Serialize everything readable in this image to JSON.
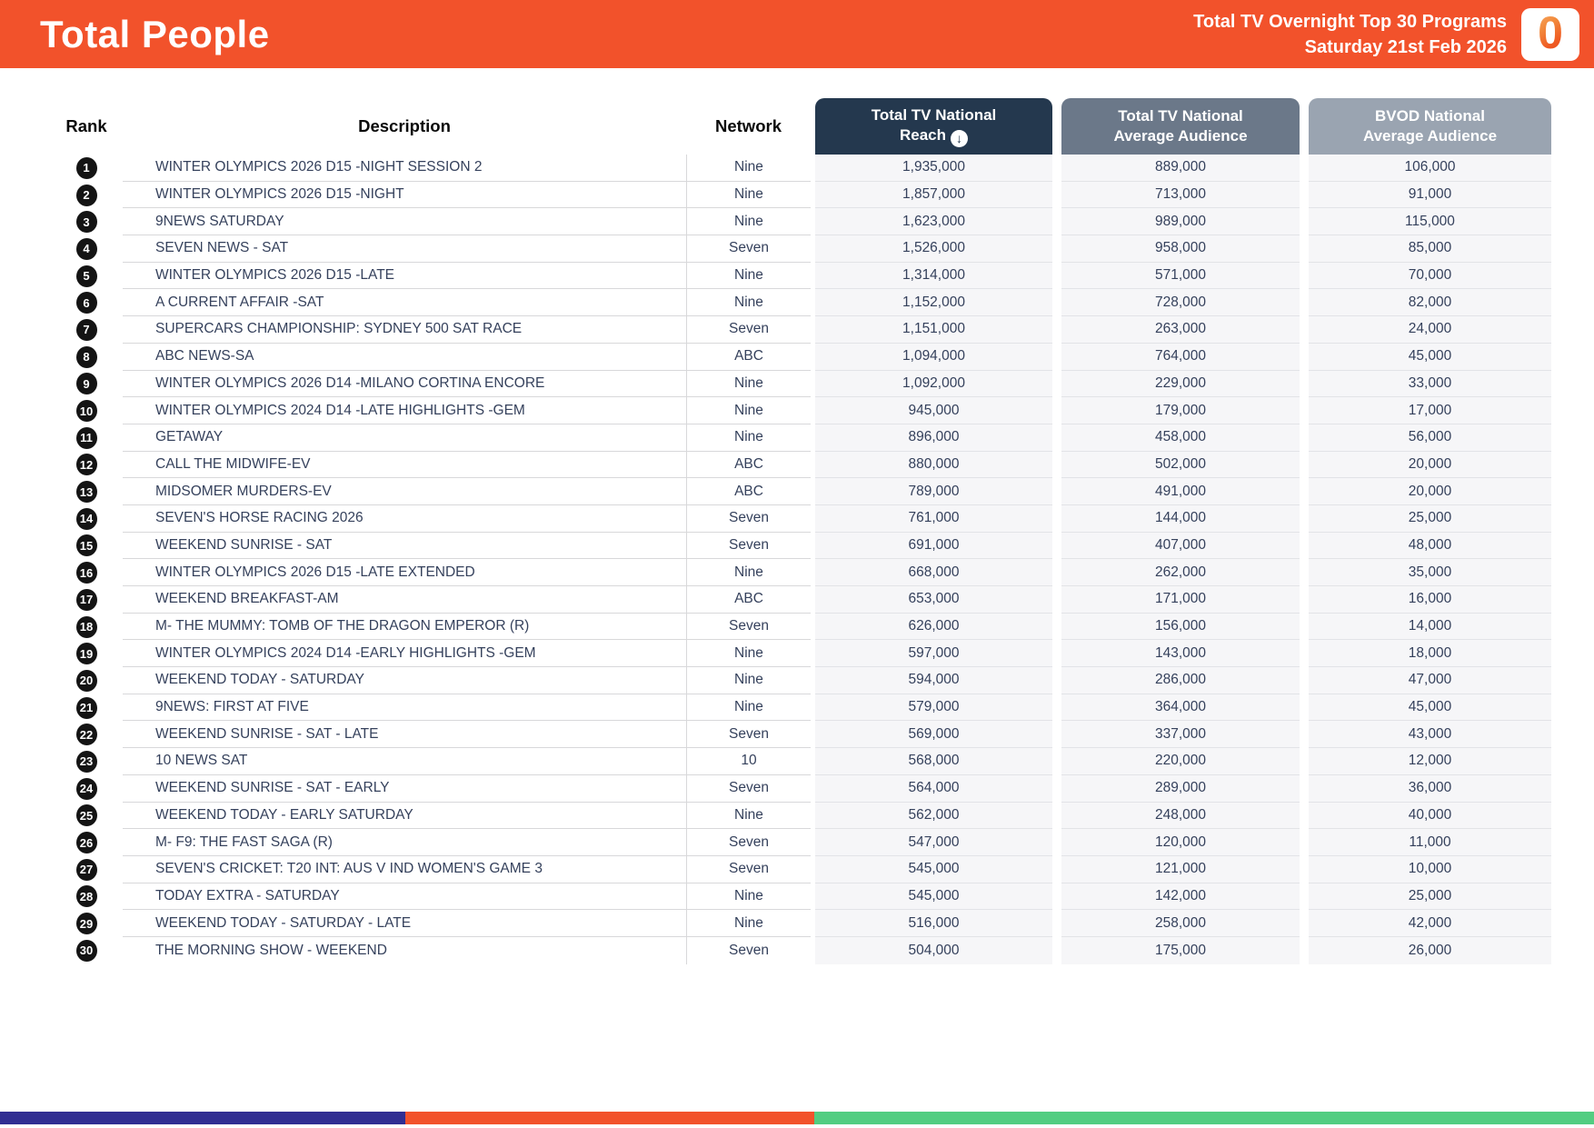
{
  "header": {
    "title": "Total People",
    "subtitle_line1": "Total TV Overnight Top 30 Programs",
    "subtitle_line2": "Saturday 21st Feb 2026",
    "logo_glyph": "0",
    "bg_color": "#f2522b"
  },
  "table": {
    "columns": {
      "rank": "Rank",
      "description": "Description",
      "network": "Network",
      "reach_line1": "Total TV National",
      "reach_line2": "Reach",
      "avg_line1": "Total TV National",
      "avg_line2": "Average Audience",
      "bvod_line1": "BVOD National",
      "bvod_line2": "Average Audience"
    },
    "sort_icon_glyph": "↓",
    "header_colors": {
      "reach": "#24384e",
      "avg": "#6b7889",
      "bvod": "#9aa4b1"
    },
    "rows": [
      {
        "rank": "1",
        "description": "WINTER OLYMPICS 2026 D15 -NIGHT SESSION 2",
        "network": "Nine",
        "reach": "1,935,000",
        "avg": "889,000",
        "bvod": "106,000"
      },
      {
        "rank": "2",
        "description": "WINTER OLYMPICS 2026 D15 -NIGHT",
        "network": "Nine",
        "reach": "1,857,000",
        "avg": "713,000",
        "bvod": "91,000"
      },
      {
        "rank": "3",
        "description": "9NEWS SATURDAY",
        "network": "Nine",
        "reach": "1,623,000",
        "avg": "989,000",
        "bvod": "115,000"
      },
      {
        "rank": "4",
        "description": "SEVEN NEWS - SAT",
        "network": "Seven",
        "reach": "1,526,000",
        "avg": "958,000",
        "bvod": "85,000"
      },
      {
        "rank": "5",
        "description": "WINTER OLYMPICS 2026 D15 -LATE",
        "network": "Nine",
        "reach": "1,314,000",
        "avg": "571,000",
        "bvod": "70,000"
      },
      {
        "rank": "6",
        "description": "A CURRENT AFFAIR -SAT",
        "network": "Nine",
        "reach": "1,152,000",
        "avg": "728,000",
        "bvod": "82,000"
      },
      {
        "rank": "7",
        "description": "SUPERCARS CHAMPIONSHIP: SYDNEY 500 SAT RACE",
        "network": "Seven",
        "reach": "1,151,000",
        "avg": "263,000",
        "bvod": "24,000"
      },
      {
        "rank": "8",
        "description": "ABC NEWS-SA",
        "network": "ABC",
        "reach": "1,094,000",
        "avg": "764,000",
        "bvod": "45,000"
      },
      {
        "rank": "9",
        "description": "WINTER OLYMPICS 2026 D14 -MILANO CORTINA ENCORE",
        "network": "Nine",
        "reach": "1,092,000",
        "avg": "229,000",
        "bvod": "33,000"
      },
      {
        "rank": "10",
        "description": "WINTER OLYMPICS 2024 D14 -LATE HIGHLIGHTS -GEM",
        "network": "Nine",
        "reach": "945,000",
        "avg": "179,000",
        "bvod": "17,000"
      },
      {
        "rank": "11",
        "description": "GETAWAY",
        "network": "Nine",
        "reach": "896,000",
        "avg": "458,000",
        "bvod": "56,000"
      },
      {
        "rank": "12",
        "description": "CALL THE MIDWIFE-EV",
        "network": "ABC",
        "reach": "880,000",
        "avg": "502,000",
        "bvod": "20,000"
      },
      {
        "rank": "13",
        "description": "MIDSOMER MURDERS-EV",
        "network": "ABC",
        "reach": "789,000",
        "avg": "491,000",
        "bvod": "20,000"
      },
      {
        "rank": "14",
        "description": "SEVEN'S HORSE RACING 2026",
        "network": "Seven",
        "reach": "761,000",
        "avg": "144,000",
        "bvod": "25,000"
      },
      {
        "rank": "15",
        "description": "WEEKEND SUNRISE - SAT",
        "network": "Seven",
        "reach": "691,000",
        "avg": "407,000",
        "bvod": "48,000"
      },
      {
        "rank": "16",
        "description": "WINTER OLYMPICS 2026 D15 -LATE EXTENDED",
        "network": "Nine",
        "reach": "668,000",
        "avg": "262,000",
        "bvod": "35,000"
      },
      {
        "rank": "17",
        "description": "WEEKEND BREAKFAST-AM",
        "network": "ABC",
        "reach": "653,000",
        "avg": "171,000",
        "bvod": "16,000"
      },
      {
        "rank": "18",
        "description": "M- THE MUMMY: TOMB OF THE DRAGON EMPEROR (R)",
        "network": "Seven",
        "reach": "626,000",
        "avg": "156,000",
        "bvod": "14,000"
      },
      {
        "rank": "19",
        "description": "WINTER OLYMPICS 2024 D14 -EARLY HIGHLIGHTS -GEM",
        "network": "Nine",
        "reach": "597,000",
        "avg": "143,000",
        "bvod": "18,000"
      },
      {
        "rank": "20",
        "description": "WEEKEND TODAY - SATURDAY",
        "network": "Nine",
        "reach": "594,000",
        "avg": "286,000",
        "bvod": "47,000"
      },
      {
        "rank": "21",
        "description": "9NEWS: FIRST AT FIVE",
        "network": "Nine",
        "reach": "579,000",
        "avg": "364,000",
        "bvod": "45,000"
      },
      {
        "rank": "22",
        "description": "WEEKEND SUNRISE - SAT - LATE",
        "network": "Seven",
        "reach": "569,000",
        "avg": "337,000",
        "bvod": "43,000"
      },
      {
        "rank": "23",
        "description": "10 NEWS SAT",
        "network": "10",
        "reach": "568,000",
        "avg": "220,000",
        "bvod": "12,000"
      },
      {
        "rank": "24",
        "description": "WEEKEND SUNRISE - SAT - EARLY",
        "network": "Seven",
        "reach": "564,000",
        "avg": "289,000",
        "bvod": "36,000"
      },
      {
        "rank": "25",
        "description": "WEEKEND TODAY - EARLY SATURDAY",
        "network": "Nine",
        "reach": "562,000",
        "avg": "248,000",
        "bvod": "40,000"
      },
      {
        "rank": "26",
        "description": "M- F9: THE FAST SAGA (R)",
        "network": "Seven",
        "reach": "547,000",
        "avg": "120,000",
        "bvod": "11,000"
      },
      {
        "rank": "27",
        "description": "SEVEN'S CRICKET: T20 INT: AUS V IND WOMEN'S GAME 3",
        "network": "Seven",
        "reach": "545,000",
        "avg": "121,000",
        "bvod": "10,000"
      },
      {
        "rank": "28",
        "description": "TODAY EXTRA - SATURDAY",
        "network": "Nine",
        "reach": "545,000",
        "avg": "142,000",
        "bvod": "25,000"
      },
      {
        "rank": "29",
        "description": "WEEKEND TODAY - SATURDAY - LATE",
        "network": "Nine",
        "reach": "516,000",
        "avg": "258,000",
        "bvod": "42,000"
      },
      {
        "rank": "30",
        "description": "THE MORNING SHOW - WEEKEND",
        "network": "Seven",
        "reach": "504,000",
        "avg": "175,000",
        "bvod": "26,000"
      }
    ]
  },
  "footer": {
    "segment_colors": [
      "#312e92",
      "#f2522b",
      "#52cd81"
    ]
  }
}
